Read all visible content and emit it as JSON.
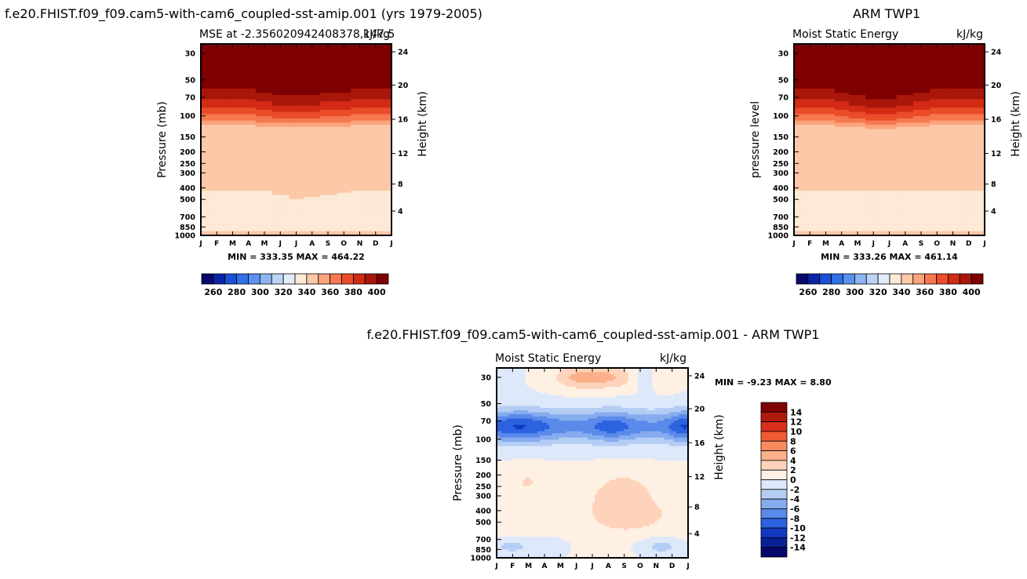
{
  "page": {
    "top_left_title": "f.e20.FHIST.f09_f09.cam5-with-cam6_coupled-sst-amip.001 (yrs 1979-2005)",
    "top_right_title": "ARM TWP1",
    "bottom_title": "f.e20.FHIST.f09_f09.cam5-with-cam6_coupled-sst-amip.001 - ARM TWP1"
  },
  "chart_data": [
    {
      "id": "model",
      "type": "heatmap",
      "subtitle_left": "MSE at -2.356020942408378,147.5",
      "subtitle_right": "kJ/kg",
      "ylabel": "Pressure (mb)",
      "y2label": "Height (km)",
      "x": [
        "J",
        "F",
        "M",
        "A",
        "M",
        "J",
        "J",
        "A",
        "S",
        "O",
        "N",
        "D",
        "J"
      ],
      "y_pressure_ticks": [
        30,
        50,
        70,
        100,
        150,
        200,
        250,
        300,
        400,
        500,
        700,
        850,
        1000
      ],
      "y_height_ticks": [
        24,
        20,
        16,
        12,
        8,
        4
      ],
      "stats": "MIN = 333.35 MAX = 464.22",
      "zlim": [
        333.35,
        464.22
      ],
      "field_model": "mse",
      "level_adjust": [
        0,
        0,
        0,
        0,
        0,
        2,
        4,
        3,
        2,
        1,
        0,
        0,
        0
      ],
      "upper_adjust": [
        0,
        0,
        0,
        0,
        1,
        2,
        2,
        2,
        1,
        1,
        0,
        0,
        0
      ],
      "colorbar": {
        "labels": [
          "260",
          "280",
          "300",
          "320",
          "340",
          "360",
          "380",
          "400"
        ],
        "colors": [
          "#08086e",
          "#0a24a8",
          "#1b4fd6",
          "#3070e8",
          "#5a92ee",
          "#8db4f1",
          "#bcd5f7",
          "#e1edfb",
          "#fde9d7",
          "#fcc8a8",
          "#fba47c",
          "#f77851",
          "#ea4d2a",
          "#d22b14",
          "#a9170a",
          "#7f0000"
        ]
      }
    },
    {
      "id": "obs",
      "type": "heatmap",
      "subtitle_left": "Moist Static Energy",
      "subtitle_right": "kJ/kg",
      "ylabel": "pressure level",
      "y2label": "Height (km)",
      "x": [
        "J",
        "F",
        "M",
        "A",
        "M",
        "J",
        "J",
        "A",
        "S",
        "O",
        "N",
        "D",
        "J"
      ],
      "y_pressure_ticks": [
        30,
        50,
        70,
        100,
        150,
        200,
        250,
        300,
        400,
        500,
        700,
        850,
        1000
      ],
      "y_height_ticks": [
        24,
        20,
        16,
        12,
        8,
        4
      ],
      "stats": "MIN = 333.26 MAX = 461.14",
      "zlim": [
        333.26,
        461.14
      ],
      "field_model": "mse",
      "level_adjust": [
        0,
        0,
        0,
        0,
        0,
        0,
        0,
        0,
        0,
        0,
        0,
        0,
        0
      ],
      "upper_adjust": [
        0,
        0,
        0,
        1,
        2,
        3,
        3,
        2,
        1,
        0,
        0,
        0,
        0
      ],
      "colorbar": {
        "labels": [
          "260",
          "280",
          "300",
          "320",
          "340",
          "360",
          "380",
          "400"
        ],
        "colors": [
          "#08086e",
          "#0a24a8",
          "#1b4fd6",
          "#3070e8",
          "#5a92ee",
          "#8db4f1",
          "#bcd5f7",
          "#e1edfb",
          "#fde9d7",
          "#fcc8a8",
          "#fba47c",
          "#f77851",
          "#ea4d2a",
          "#d22b14",
          "#a9170a",
          "#7f0000"
        ]
      }
    },
    {
      "id": "diff",
      "type": "heatmap",
      "subtitle_left": "Moist Static Energy",
      "subtitle_right": "kJ/kg",
      "ylabel": "Pressure (mb)",
      "y2label": "Height (km)",
      "x": [
        "J",
        "F",
        "M",
        "A",
        "M",
        "J",
        "J",
        "A",
        "S",
        "O",
        "N",
        "D",
        "J"
      ],
      "y_pressure_ticks": [
        30,
        50,
        70,
        100,
        150,
        200,
        250,
        300,
        400,
        500,
        700,
        850,
        1000
      ],
      "y_height_ticks": [
        24,
        20,
        16,
        12,
        8,
        4
      ],
      "stats": "MIN =  -9.23 MAX =   8.80",
      "zlim": [
        -9.23,
        8.8
      ],
      "field_model": "diff",
      "colorbar": {
        "labels": [
          "14",
          "12",
          "10",
          "8",
          "6",
          "4",
          "2",
          "0",
          "-2",
          "-4",
          "-6",
          "-8",
          "-10",
          "-12",
          "-14"
        ],
        "colors": [
          "#7f0000",
          "#b01a0c",
          "#d8301a",
          "#f05a33",
          "#f98a5e",
          "#fbb08a",
          "#fdd4bb",
          "#fff0e4",
          "#dde9fb",
          "#b4cdf4",
          "#86acee",
          "#5a8aea",
          "#2c62e0",
          "#1139c2",
          "#0a1f96",
          "#05086b"
        ]
      }
    }
  ]
}
